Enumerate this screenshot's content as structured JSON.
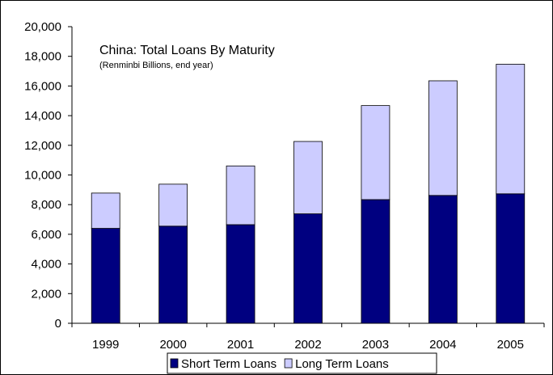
{
  "chart_data": {
    "type": "bar",
    "stacked": true,
    "title": "China: Total Loans By Maturity",
    "subtitle": "(Renminbi Billions, end year)",
    "categories": [
      "1999",
      "2000",
      "2001",
      "2002",
      "2003",
      "2004",
      "2005"
    ],
    "series": [
      {
        "name": "Short Term Loans",
        "color": "#000080",
        "values": [
          6400,
          6550,
          6650,
          7380,
          8340,
          8620,
          8730
        ]
      },
      {
        "name": "Long Term Loans",
        "color": "#CCCCFF",
        "values": [
          2380,
          2830,
          3960,
          4880,
          6340,
          7730,
          8740
        ]
      }
    ],
    "ylim": [
      0,
      20000
    ],
    "yticks": [
      "0",
      "2,000",
      "4,000",
      "6,000",
      "8,000",
      "10,000",
      "12,000",
      "14,000",
      "16,000",
      "18,000",
      "20,000"
    ],
    "ytick_values": [
      0,
      2000,
      4000,
      6000,
      8000,
      10000,
      12000,
      14000,
      16000,
      18000,
      20000
    ],
    "legend_position": "bottom",
    "grid": false
  }
}
